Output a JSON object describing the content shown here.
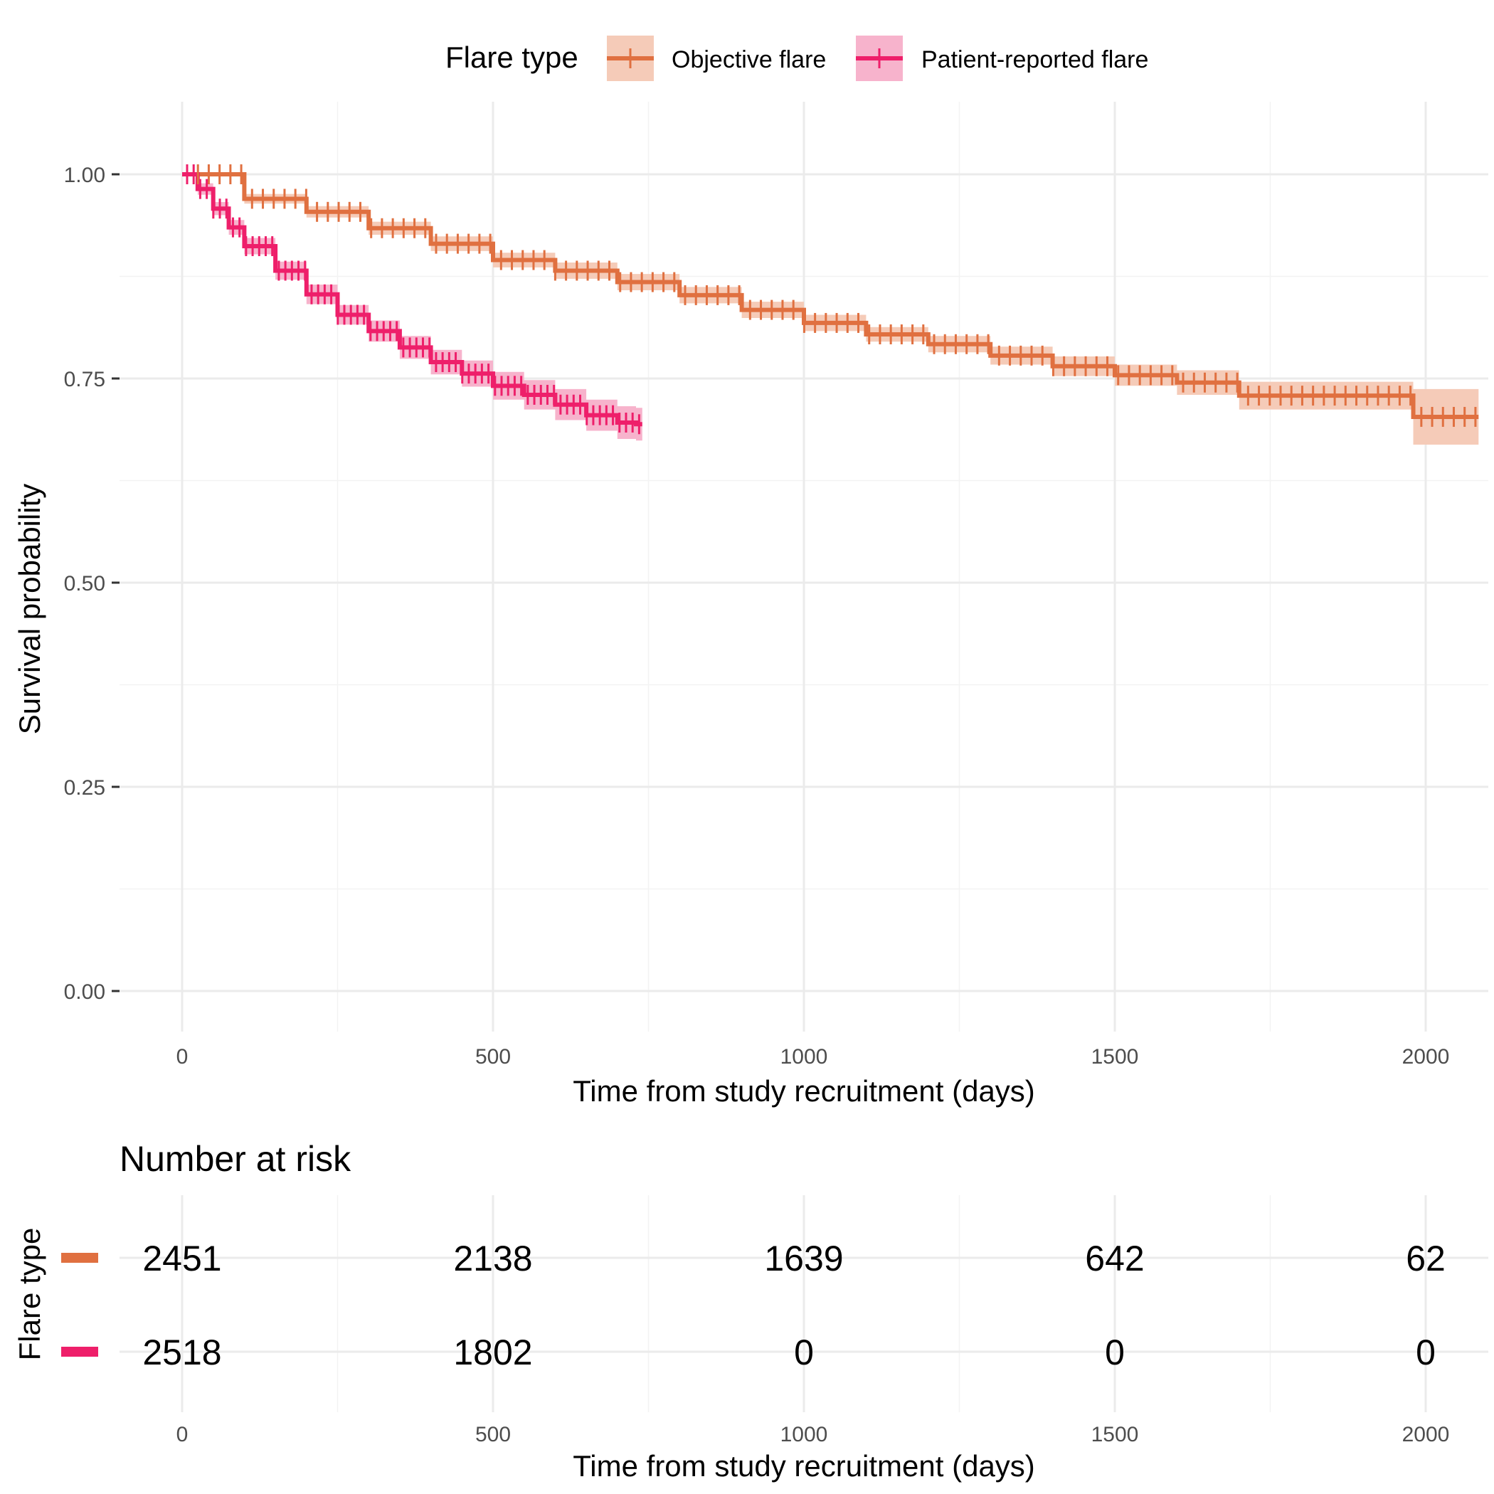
{
  "legend": {
    "title": "Flare type",
    "items": [
      {
        "label": "Objective flare",
        "color": "#E07040"
      },
      {
        "label": "Patient-reported flare",
        "color": "#EE1F6A"
      }
    ]
  },
  "chart_data": [
    {
      "type": "line",
      "subtype": "kaplan-meier",
      "title": "",
      "xlabel": "Time from study recruitment (days)",
      "ylabel": "Survival probability",
      "xlim": [
        -100,
        2100
      ],
      "ylim": [
        -0.04,
        1.04
      ],
      "x_ticks": [
        "0",
        "500",
        "1000",
        "1500",
        "2000"
      ],
      "y_ticks": [
        "0.00",
        "0.25",
        "0.50",
        "0.75",
        "1.00"
      ],
      "grid": true,
      "legend_position": "top",
      "series": [
        {
          "name": "Objective flare",
          "color": "#E07040",
          "band_color": "#F5CBB8",
          "x": [
            0,
            100,
            200,
            300,
            400,
            500,
            600,
            700,
            800,
            900,
            1000,
            1100,
            1200,
            1300,
            1400,
            1500,
            1600,
            1700,
            1800,
            1900,
            1980,
            2000,
            2080
          ],
          "y": [
            1.0,
            0.97,
            0.954,
            0.934,
            0.915,
            0.895,
            0.882,
            0.868,
            0.852,
            0.834,
            0.818,
            0.804,
            0.792,
            0.778,
            0.765,
            0.754,
            0.745,
            0.729,
            0.729,
            0.729,
            0.703,
            0.703,
            0.703
          ],
          "ci_lower": [
            1.0,
            0.964,
            0.947,
            0.926,
            0.906,
            0.886,
            0.872,
            0.858,
            0.842,
            0.824,
            0.808,
            0.795,
            0.782,
            0.767,
            0.753,
            0.741,
            0.73,
            0.712,
            0.712,
            0.712,
            0.669,
            0.669,
            0.669
          ],
          "ci_upper": [
            1.0,
            0.976,
            0.961,
            0.942,
            0.924,
            0.904,
            0.892,
            0.878,
            0.862,
            0.844,
            0.828,
            0.813,
            0.802,
            0.789,
            0.777,
            0.767,
            0.76,
            0.746,
            0.746,
            0.746,
            0.737,
            0.737,
            0.737
          ]
        },
        {
          "name": "Patient-reported flare",
          "color": "#EE1F6A",
          "band_color": "#F7B3CC",
          "x": [
            0,
            25,
            50,
            75,
            100,
            150,
            200,
            250,
            300,
            350,
            400,
            450,
            500,
            550,
            600,
            650,
            700,
            730
          ],
          "y": [
            1.0,
            0.982,
            0.958,
            0.935,
            0.912,
            0.882,
            0.853,
            0.828,
            0.808,
            0.788,
            0.77,
            0.756,
            0.741,
            0.73,
            0.718,
            0.705,
            0.696,
            0.694
          ],
          "ci_lower": [
            1.0,
            0.975,
            0.95,
            0.926,
            0.902,
            0.871,
            0.841,
            0.816,
            0.795,
            0.774,
            0.755,
            0.74,
            0.724,
            0.712,
            0.699,
            0.686,
            0.676,
            0.674
          ],
          "ci_upper": [
            1.0,
            0.989,
            0.966,
            0.944,
            0.922,
            0.893,
            0.865,
            0.84,
            0.821,
            0.802,
            0.785,
            0.772,
            0.758,
            0.748,
            0.737,
            0.724,
            0.716,
            0.714
          ]
        }
      ]
    },
    {
      "type": "table",
      "title": "Number at risk",
      "xlabel": "Time from study recruitment (days)",
      "ylabel": "Flare type",
      "x_ticks": [
        "0",
        "500",
        "1000",
        "1500",
        "2000"
      ],
      "time_points": [
        0,
        500,
        1000,
        1500,
        2000
      ],
      "rows": [
        {
          "name": "Objective flare",
          "color": "#E07040",
          "values": [
            "2451",
            "2138",
            "1639",
            "642",
            "62"
          ]
        },
        {
          "name": "Patient-reported flare",
          "color": "#EE1F6A",
          "values": [
            "2518",
            "1802",
            "0",
            "0",
            "0"
          ]
        }
      ]
    }
  ]
}
